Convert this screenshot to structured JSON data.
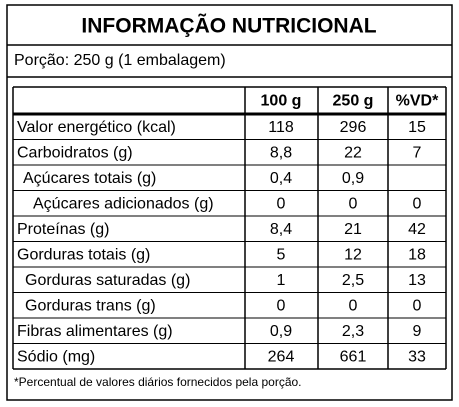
{
  "header": {
    "title": "INFORMAÇÃO NUTRICIONAL",
    "serving": "Porção: 250 g (1 embalagem)"
  },
  "table": {
    "columns": [
      "100 g",
      "250 g",
      "%VD*"
    ],
    "rows": [
      [
        "Valor energético (kcal)",
        "118",
        "296",
        "15"
      ],
      [
        "Carboidratos (g)",
        "8,8",
        "22",
        "7"
      ],
      [
        "Açúcares totais (g)",
        "0,4",
        "0,9",
        null
      ],
      [
        "Açúcares adicionados (g)",
        "0",
        "0",
        "0"
      ],
      [
        "Proteínas (g)",
        "8,4",
        "21",
        "42"
      ],
      [
        "Gorduras totais (g)",
        "5",
        "12",
        "18"
      ],
      [
        "Gorduras saturadas (g)",
        "1",
        "2,5",
        "13"
      ],
      [
        "Gorduras trans (g)",
        "0",
        "0",
        "0"
      ],
      [
        "Fibras alimentares (g)",
        "0,9",
        "2,3",
        "9"
      ],
      [
        "Sódio (mg)",
        "264",
        "661",
        "33"
      ]
    ]
  },
  "footnote": "*Percentual de valores diários fornecidos pela porção."
}
